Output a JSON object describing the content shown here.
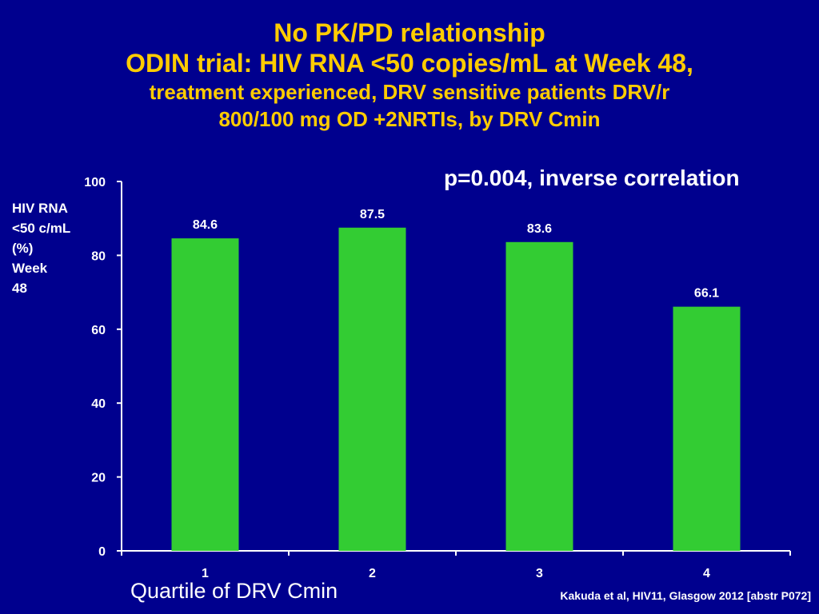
{
  "slide": {
    "title_line1": "No PK/PD relationship",
    "title_line2": "ODIN trial: HIV RNA <50 copies/mL at Week 48,",
    "title_line3a": "treatment experienced, DRV sensitive patients DRV/r",
    "title_line3b": "800/100 mg OD +2NRTIs, by DRV Cmin",
    "annotation": "p=0.004, inverse correlation",
    "ylabel_lines": [
      "HIV RNA",
      "<50 c/mL",
      "(%)",
      "Week",
      "48"
    ],
    "xlabel": "Quartile of DRV Cmin",
    "source": "Kakuda et al, HIV11, Glasgow 2012 [abstr P072]"
  },
  "colors": {
    "background": "#00008e",
    "title": "#ffcc00",
    "bar": "#33cc33",
    "text": "#ffffff"
  },
  "chart_data": {
    "type": "bar",
    "categories": [
      "1",
      "2",
      "3",
      "4"
    ],
    "values": [
      84.6,
      87.5,
      83.6,
      66.1
    ],
    "data_labels": [
      "84.6",
      "87.5",
      "83.6",
      "66.1"
    ],
    "yticks": [
      0,
      20,
      40,
      60,
      80,
      100
    ],
    "ylim": [
      0,
      100
    ],
    "xlabel": "Quartile of DRV Cmin",
    "ylabel": "HIV RNA <50 c/mL (%) Week 48",
    "grid": false,
    "legend": "none"
  }
}
